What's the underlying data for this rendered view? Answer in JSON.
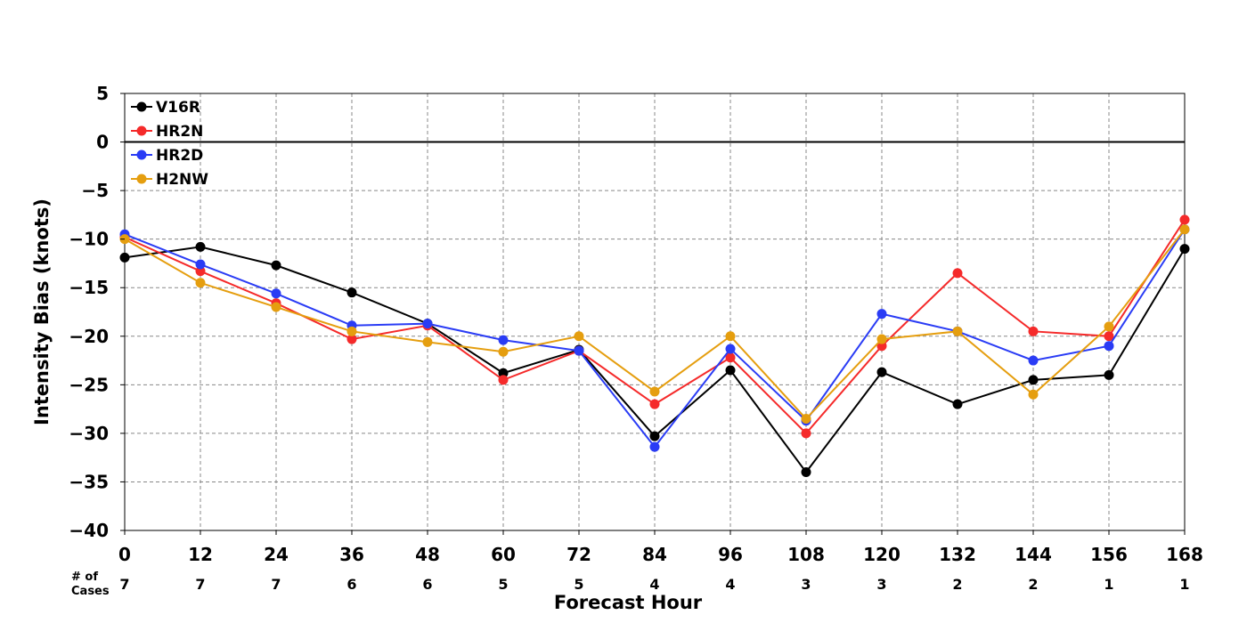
{
  "chart_data": {
    "type": "line",
    "xlabel": "Forecast Hour",
    "ylabel": "Intensity Bias (knots)",
    "xlim": [
      0,
      168
    ],
    "ylim": [
      -40,
      5
    ],
    "x_ticks": [
      0,
      12,
      24,
      36,
      48,
      60,
      72,
      84,
      96,
      108,
      120,
      132,
      144,
      156,
      168
    ],
    "y_ticks": [
      5,
      0,
      -5,
      -10,
      -15,
      -20,
      -25,
      -30,
      -35,
      -40
    ],
    "grid": true,
    "legend_position": "top-left",
    "cases_label": "# of\nCases",
    "cases": [
      7,
      7,
      7,
      6,
      6,
      5,
      5,
      4,
      4,
      3,
      3,
      2,
      2,
      1,
      1
    ],
    "x": [
      0,
      12,
      24,
      36,
      48,
      60,
      72,
      84,
      96,
      108,
      120,
      132,
      144,
      156,
      168
    ],
    "series": [
      {
        "name": "V16R",
        "color": "#000000",
        "values": [
          -11.9,
          -10.8,
          -12.7,
          -15.5,
          -18.7,
          -23.8,
          -21.4,
          -30.3,
          -23.5,
          -34.0,
          -23.7,
          -27.0,
          -24.5,
          -24.0,
          -11.0
        ]
      },
      {
        "name": "HR2N",
        "color": "#f52a2a",
        "values": [
          -9.8,
          -13.3,
          -16.6,
          -20.3,
          -18.9,
          -24.5,
          -21.5,
          -27.0,
          -22.2,
          -30.0,
          -21.0,
          -13.5,
          -19.5,
          -20.0,
          -8.0
        ]
      },
      {
        "name": "HR2D",
        "color": "#2a3cf5",
        "values": [
          -9.5,
          -12.6,
          -15.6,
          -18.9,
          -18.7,
          -20.4,
          -21.5,
          -31.4,
          -21.3,
          -28.7,
          -17.7,
          -19.5,
          -22.5,
          -21.0,
          -9.0
        ]
      },
      {
        "name": "H2NW",
        "color": "#e59e0f",
        "values": [
          -10.0,
          -14.5,
          -17.0,
          -19.5,
          -20.6,
          -21.6,
          -20.0,
          -25.7,
          -20.0,
          -28.5,
          -20.3,
          -19.5,
          -26.0,
          -19.0,
          -9.0
        ]
      }
    ]
  }
}
